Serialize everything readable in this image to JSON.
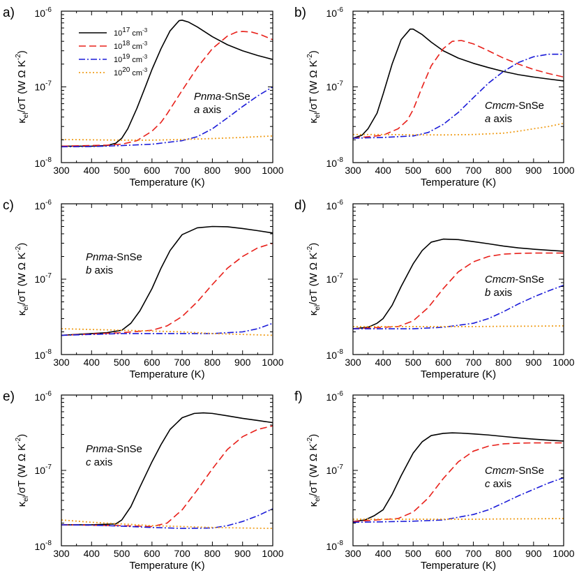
{
  "chart_data": {
    "type": "line",
    "x_axis": {
      "label": "Temperature (K)",
      "range": [
        300,
        1000
      ],
      "ticks": [
        300,
        400,
        500,
        600,
        700,
        800,
        900,
        1000
      ]
    },
    "y_axis": {
      "label_parts": [
        "κ",
        "el",
        "/σT (W Ω K",
        "-2",
        ")"
      ],
      "scale": "log",
      "range": [
        1e-08,
        1e-06
      ],
      "major_ticks": [
        {
          "value": 1e-08,
          "base": "10",
          "exp": "-8"
        },
        {
          "value": 1e-07,
          "base": "10",
          "exp": "-7"
        },
        {
          "value": 1e-06,
          "base": "10",
          "exp": "-6"
        }
      ]
    },
    "legend": {
      "placement": "top-left (panel a)",
      "entries": [
        {
          "base": "10",
          "exp": "17",
          "unit": " cm",
          "unit_exp": "-3",
          "color": "#000000",
          "dash": ""
        },
        {
          "base": "10",
          "exp": "18",
          "unit": " cm",
          "unit_exp": "-3",
          "color": "#e8201a",
          "dash": "10,5"
        },
        {
          "base": "10",
          "exp": "19",
          "unit": " cm",
          "unit_exp": "-3",
          "color": "#1a1ad8",
          "dash": "9,3,2,3"
        },
        {
          "base": "10",
          "exp": "20",
          "unit": " cm",
          "unit_exp": "-3",
          "color": "#f0a020",
          "dash": "2,3"
        }
      ]
    },
    "panels": [
      {
        "label": "a)",
        "phase": "Pnma",
        "phase_suffix": "-SnSe",
        "axis_letter": "a",
        "axis_word": " axis",
        "series": [
          {
            "name": "1e17 cm-3",
            "x": [
              300,
              400,
              450,
              480,
              500,
              520,
              550,
              580,
              600,
              630,
              660,
              690,
              700,
              720,
              750,
              800,
              850,
              900,
              950,
              1000
            ],
            "y": [
              1.65e-08,
              1.65e-08,
              1.68e-08,
              1.8e-08,
              2.1e-08,
              2.8e-08,
              5.2e-08,
              1.05e-07,
              1.7e-07,
              3.2e-07,
              5.5e-07,
              7.5e-07,
              7.6e-07,
              7.2e-07,
              6.2e-07,
              4.6e-07,
              3.6e-07,
              3e-07,
              2.6e-07,
              2.3e-07
            ]
          },
          {
            "name": "1e18 cm-3",
            "x": [
              300,
              450,
              500,
              550,
              600,
              630,
              650,
              700,
              750,
              800,
              850,
              880,
              900,
              930,
              960,
              1000
            ],
            "y": [
              1.65e-08,
              1.7e-08,
              1.75e-08,
              1.95e-08,
              2.6e-08,
              3.4e-08,
              4.4e-08,
              9e-08,
              1.8e-07,
              3.2e-07,
              4.7e-07,
              5.3e-07,
              5.4e-07,
              5.3e-07,
              4.9e-07,
              4.2e-07
            ]
          },
          {
            "name": "1e19 cm-3",
            "x": [
              300,
              400,
              500,
              600,
              700,
              750,
              800,
              850,
              900,
              950,
              1000
            ],
            "y": [
              1.62e-08,
              1.63e-08,
              1.68e-08,
              1.75e-08,
              1.95e-08,
              2.2e-08,
              2.8e-08,
              3.9e-08,
              5.5e-08,
              7.6e-08,
              1e-07
            ]
          },
          {
            "name": "1e20 cm-3",
            "x": [
              300,
              400,
              500,
              600,
              700,
              800,
              900,
              1000
            ],
            "y": [
              2.02e-08,
              2e-08,
              1.98e-08,
              1.98e-08,
              2.02e-08,
              2.08e-08,
              2.15e-08,
              2.25e-08
            ]
          }
        ]
      },
      {
        "label": "b)",
        "phase": "Cmcm",
        "phase_suffix": "-SnSe",
        "axis_letter": "a",
        "axis_word": " axis",
        "series": [
          {
            "name": "1e17 cm-3",
            "x": [
              300,
              330,
              350,
              380,
              400,
              430,
              460,
              490,
              500,
              530,
              560,
              600,
              650,
              700,
              750,
              800,
              850,
              900,
              950,
              1000
            ],
            "y": [
              2.1e-08,
              2.3e-08,
              2.8e-08,
              4.5e-08,
              8e-08,
              2e-07,
              4.2e-07,
              5.8e-07,
              5.8e-07,
              4.9e-07,
              3.9e-07,
              3e-07,
              2.4e-07,
              2.05e-07,
              1.8e-07,
              1.6e-07,
              1.45e-07,
              1.35e-07,
              1.27e-07,
              1.2e-07
            ]
          },
          {
            "name": "1e18 cm-3",
            "x": [
              300,
              400,
              450,
              480,
              500,
              530,
              560,
              600,
              630,
              660,
              700,
              750,
              800,
              850,
              900,
              950,
              1000
            ],
            "y": [
              2.1e-08,
              2.3e-08,
              2.8e-08,
              3.6e-08,
              5e-08,
              1e-07,
              1.9e-07,
              3.2e-07,
              4e-07,
              4.1e-07,
              3.7e-07,
              3e-07,
              2.4e-07,
              2e-07,
              1.7e-07,
              1.5e-07,
              1.35e-07
            ]
          },
          {
            "name": "1e19 cm-3",
            "x": [
              300,
              400,
              500,
              550,
              600,
              650,
              700,
              750,
              800,
              850,
              900,
              950,
              1000
            ],
            "y": [
              2.1e-08,
              2.15e-08,
              2.25e-08,
              2.5e-08,
              3.2e-08,
              4.6e-08,
              7.2e-08,
              1.12e-07,
              1.6e-07,
              2.1e-07,
              2.5e-07,
              2.7e-07,
              2.7e-07
            ]
          },
          {
            "name": "1e20 cm-3",
            "x": [
              300,
              400,
              500,
              600,
              700,
              800,
              850,
              900,
              950,
              1000
            ],
            "y": [
              2.35e-08,
              2.35e-08,
              2.33e-08,
              2.32e-08,
              2.35e-08,
              2.45e-08,
              2.6e-08,
              2.8e-08,
              3e-08,
              3.3e-08
            ]
          }
        ]
      },
      {
        "label": "c)",
        "phase": "Pnma",
        "phase_suffix": "-SnSe",
        "axis_letter": "b",
        "axis_word": " axis",
        "series": [
          {
            "name": "1e17 cm-3",
            "x": [
              300,
              400,
              450,
              500,
              530,
              560,
              600,
              630,
              660,
              700,
              750,
              800,
              850,
              900,
              950,
              1000
            ],
            "y": [
              1.8e-08,
              1.9e-08,
              1.95e-08,
              2.1e-08,
              2.6e-08,
              3.8e-08,
              7.5e-08,
              1.4e-07,
              2.4e-07,
              3.9e-07,
              4.8e-07,
              5e-07,
              4.95e-07,
              4.7e-07,
              4.4e-07,
              4.1e-07
            ]
          },
          {
            "name": "1e18 cm-3",
            "x": [
              300,
              500,
              600,
              650,
              700,
              750,
              800,
              850,
              900,
              950,
              1000
            ],
            "y": [
              1.8e-08,
              1.95e-08,
              2.1e-08,
              2.4e-08,
              3.2e-08,
              5e-08,
              8.5e-08,
              1.4e-07,
              2e-07,
              2.6e-07,
              3e-07
            ]
          },
          {
            "name": "1e19 cm-3",
            "x": [
              300,
              400,
              500,
              600,
              700,
              800,
              900,
              950,
              1000
            ],
            "y": [
              1.8e-08,
              1.85e-08,
              1.9e-08,
              1.9e-08,
              1.9e-08,
              1.9e-08,
              2e-08,
              2.2e-08,
              2.6e-08
            ]
          },
          {
            "name": "1e20 cm-3",
            "x": [
              300,
              400,
              500,
              600,
              700,
              800,
              900,
              1000
            ],
            "y": [
              2.2e-08,
              2.15e-08,
              2.1e-08,
              2.05e-08,
              2e-08,
              1.9e-08,
              1.85e-08,
              1.8e-08
            ]
          }
        ]
      },
      {
        "label": "d)",
        "phase": "Cmcm",
        "phase_suffix": "-SnSe",
        "axis_letter": "b",
        "axis_word": " axis",
        "series": [
          {
            "name": "1e17 cm-3",
            "x": [
              300,
              350,
              380,
              400,
              430,
              460,
              500,
              530,
              560,
              600,
              650,
              700,
              750,
              800,
              850,
              900,
              950,
              1000
            ],
            "y": [
              2.2e-08,
              2.3e-08,
              2.6e-08,
              3e-08,
              4.5e-08,
              8e-08,
              1.6e-07,
              2.4e-07,
              3.1e-07,
              3.4e-07,
              3.35e-07,
              3.15e-07,
              2.95e-07,
              2.75e-07,
              2.6e-07,
              2.5e-07,
              2.42e-07,
              2.35e-07
            ]
          },
          {
            "name": "1e18 cm-3",
            "x": [
              300,
              450,
              500,
              550,
              600,
              650,
              700,
              750,
              800,
              850,
              900,
              950,
              1000
            ],
            "y": [
              2.2e-08,
              2.35e-08,
              2.8e-08,
              4.2e-08,
              7.5e-08,
              1.25e-07,
              1.7e-07,
              2e-07,
              2.15e-07,
              2.2e-07,
              2.22e-07,
              2.22e-07,
              2.22e-07
            ]
          },
          {
            "name": "1e19 cm-3",
            "x": [
              300,
              500,
              600,
              700,
              750,
              800,
              850,
              900,
              950,
              1000
            ],
            "y": [
              2.2e-08,
              2.2e-08,
              2.3e-08,
              2.6e-08,
              3e-08,
              3.7e-08,
              4.7e-08,
              5.8e-08,
              7e-08,
              8.3e-08
            ]
          },
          {
            "name": "1e20 cm-3",
            "x": [
              300,
              400,
              500,
              600,
              700,
              800,
              900,
              1000
            ],
            "y": [
              2.35e-08,
              2.35e-08,
              2.35e-08,
              2.35e-08,
              2.35e-08,
              2.37e-08,
              2.38e-08,
              2.4e-08
            ]
          }
        ]
      },
      {
        "label": "e)",
        "phase": "Pnma",
        "phase_suffix": "-SnSe",
        "axis_letter": "c",
        "axis_word": " axis",
        "series": [
          {
            "name": "1e17 cm-3",
            "x": [
              300,
              400,
              480,
              500,
              530,
              560,
              600,
              630,
              660,
              700,
              740,
              770,
              800,
              850,
              900,
              950,
              1000
            ],
            "y": [
              1.9e-08,
              1.9e-08,
              1.95e-08,
              2.2e-08,
              3.3e-08,
              6e-08,
              1.3e-07,
              2.2e-07,
              3.5e-07,
              5e-07,
              5.7e-07,
              5.8e-07,
              5.7e-07,
              5.3e-07,
              4.9e-07,
              4.6e-07,
              4.3e-07
            ]
          },
          {
            "name": "1e18 cm-3",
            "x": [
              300,
              500,
              600,
              650,
              700,
              750,
              800,
              850,
              900,
              950,
              1000
            ],
            "y": [
              1.9e-08,
              1.85e-08,
              1.8e-08,
              2e-08,
              3e-08,
              5.5e-08,
              1.05e-07,
              1.9e-07,
              2.8e-07,
              3.5e-07,
              3.9e-07
            ]
          },
          {
            "name": "1e19 cm-3",
            "x": [
              300,
              400,
              500,
              600,
              700,
              800,
              850,
              900,
              950,
              1000
            ],
            "y": [
              1.9e-08,
              1.88e-08,
              1.82e-08,
              1.75e-08,
              1.7e-08,
              1.72e-08,
              1.85e-08,
              2.1e-08,
              2.5e-08,
              3.1e-08
            ]
          },
          {
            "name": "1e20 cm-3",
            "x": [
              300,
              400,
              500,
              600,
              700,
              800,
              900,
              1000
            ],
            "y": [
              2.2e-08,
              2.05e-08,
              1.95e-08,
              1.85e-08,
              1.8e-08,
              1.75e-08,
              1.72e-08,
              1.7e-08
            ]
          }
        ]
      },
      {
        "label": "f)",
        "phase": "Cmcm",
        "phase_suffix": "-SnSe",
        "axis_letter": "c",
        "axis_word": " axis",
        "series": [
          {
            "name": "1e17 cm-3",
            "x": [
              300,
              340,
              370,
              400,
              430,
              460,
              500,
              530,
              560,
              600,
              630,
              660,
              700,
              750,
              800,
              850,
              900,
              950,
              1000
            ],
            "y": [
              2.1e-08,
              2.2e-08,
              2.5e-08,
              3e-08,
              4.8e-08,
              8.5e-08,
              1.7e-07,
              2.4e-07,
              2.9e-07,
              3.1e-07,
              3.15e-07,
              3.12e-07,
              3.05e-07,
              2.95e-07,
              2.82e-07,
              2.7e-07,
              2.6e-07,
              2.52e-07,
              2.45e-07
            ]
          },
          {
            "name": "1e18 cm-3",
            "x": [
              300,
              450,
              500,
              550,
              600,
              650,
              700,
              750,
              800,
              850,
              900,
              950,
              1000
            ],
            "y": [
              2.1e-08,
              2.3e-08,
              2.8e-08,
              4.3e-08,
              7.8e-08,
              1.3e-07,
              1.8e-07,
              2.1e-07,
              2.25e-07,
              2.3e-07,
              2.32e-07,
              2.32e-07,
              2.32e-07
            ]
          },
          {
            "name": "1e19 cm-3",
            "x": [
              300,
              400,
              500,
              600,
              700,
              750,
              800,
              850,
              900,
              950,
              1000
            ],
            "y": [
              2.05e-08,
              2.08e-08,
              2.12e-08,
              2.2e-08,
              2.6e-08,
              3e-08,
              3.7e-08,
              4.6e-08,
              5.6e-08,
              6.8e-08,
              8e-08
            ]
          },
          {
            "name": "1e20 cm-3",
            "x": [
              300,
              400,
              500,
              600,
              700,
              800,
              900,
              1000
            ],
            "y": [
              2.25e-08,
              2.25e-08,
              2.25e-08,
              2.25e-08,
              2.25e-08,
              2.27e-08,
              2.28e-08,
              2.3e-08
            ]
          }
        ]
      }
    ]
  }
}
